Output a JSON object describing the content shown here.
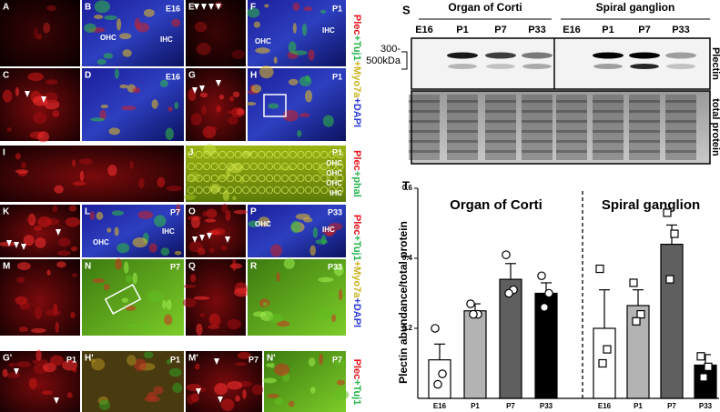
{
  "micrographs": {
    "panels": [
      {
        "letter": "A",
        "labels": []
      },
      {
        "letter": "B",
        "labels": [
          "E16",
          "OHC",
          "IHC"
        ]
      },
      {
        "letter": "E",
        "labels": []
      },
      {
        "letter": "F",
        "labels": [
          "P1",
          "OHC",
          "IHC"
        ]
      },
      {
        "letter": "C",
        "labels": []
      },
      {
        "letter": "D",
        "labels": [
          "E16"
        ]
      },
      {
        "letter": "G",
        "labels": []
      },
      {
        "letter": "H",
        "labels": [
          "P1"
        ]
      },
      {
        "letter": "I",
        "labels": []
      },
      {
        "letter": "J",
        "labels": [
          "P1",
          "OHC",
          "OHC",
          "OHC",
          "IHC"
        ]
      },
      {
        "letter": "K",
        "labels": []
      },
      {
        "letter": "L",
        "labels": [
          "P7",
          "OHC",
          "IHC"
        ]
      },
      {
        "letter": "O",
        "labels": []
      },
      {
        "letter": "P",
        "labels": [
          "P33",
          "OHC",
          "IHC"
        ]
      },
      {
        "letter": "M",
        "labels": []
      },
      {
        "letter": "N",
        "labels": [
          "P7"
        ]
      },
      {
        "letter": "Q",
        "labels": []
      },
      {
        "letter": "R",
        "labels": [
          "P33"
        ]
      },
      {
        "letter": "G'",
        "labels": [
          "P1"
        ]
      },
      {
        "letter": "H'",
        "labels": [
          "P1"
        ]
      },
      {
        "letter": "M'",
        "labels": [
          "P7"
        ]
      },
      {
        "letter": "N'",
        "labels": [
          "P7"
        ]
      }
    ],
    "stains": [
      [
        {
          "text": "Plec",
          "color": "#e8141c"
        },
        {
          "text": "+Tuj1",
          "color": "#25b34b"
        },
        {
          "text": "+Myo7a",
          "color": "#c9b21a"
        },
        {
          "text": "+DAPI",
          "color": "#2b3bd6"
        }
      ],
      [
        {
          "text": "Plec",
          "color": "#e8141c"
        },
        {
          "text": "+phal",
          "color": "#25b34b"
        }
      ],
      [
        {
          "text": "Plec",
          "color": "#e8141c"
        },
        {
          "text": "+Tuj1",
          "color": "#25b34b"
        },
        {
          "text": "+Myo7a",
          "color": "#c9b21a"
        },
        {
          "text": "+DAPI",
          "color": "#2b3bd6"
        }
      ],
      [
        {
          "text": "Plec",
          "color": "#e8141c"
        },
        {
          "text": "+Tuj1",
          "color": "#25b34b"
        }
      ]
    ]
  },
  "blot": {
    "letter": "S",
    "groups": [
      {
        "title": "Organ of Corti",
        "lanes": [
          "E16",
          "P1",
          "P7",
          "P33"
        ]
      },
      {
        "title": "Spiral ganglion",
        "lanes": [
          "E16",
          "P1",
          "P7",
          "P33"
        ]
      }
    ],
    "size_label": [
      "300-",
      "500kDa"
    ],
    "row_labels": [
      "Plectin",
      "total protein"
    ]
  },
  "chart_data": {
    "type": "bar",
    "letter": "T",
    "ylabel": "Plectin abundance/total protein",
    "ylim": [
      0,
      0.6
    ],
    "yticks": [
      0.2,
      0.4,
      0.6
    ],
    "bar_colors": [
      "#ffffff",
      "#b3b3b3",
      "#5f5f5f",
      "#000000"
    ],
    "groups": [
      {
        "title": "Organ of Corti",
        "marker": "circle",
        "categories": [
          "E16",
          "P1",
          "P7",
          "P33"
        ],
        "values": [
          0.11,
          0.25,
          0.34,
          0.3
        ],
        "errors": [
          0.045,
          0.02,
          0.045,
          0.03
        ],
        "points": [
          [
            0.2,
            0.07,
            0.04
          ],
          [
            0.27,
            0.24,
            0.24
          ],
          [
            0.41,
            0.31,
            0.3
          ],
          [
            0.35,
            0.3,
            0.26
          ]
        ]
      },
      {
        "title": "Spiral ganglion",
        "marker": "square",
        "categories": [
          "E16",
          "P1",
          "P7",
          "P33"
        ],
        "values": [
          0.2,
          0.265,
          0.44,
          0.095
        ],
        "errors": [
          0.11,
          0.045,
          0.055,
          0.03
        ],
        "points": [
          [
            0.37,
            0.14,
            0.1
          ],
          [
            0.33,
            0.24,
            0.22
          ],
          [
            0.53,
            0.47,
            0.34
          ],
          [
            0.12,
            0.09,
            0.06
          ]
        ]
      }
    ]
  }
}
